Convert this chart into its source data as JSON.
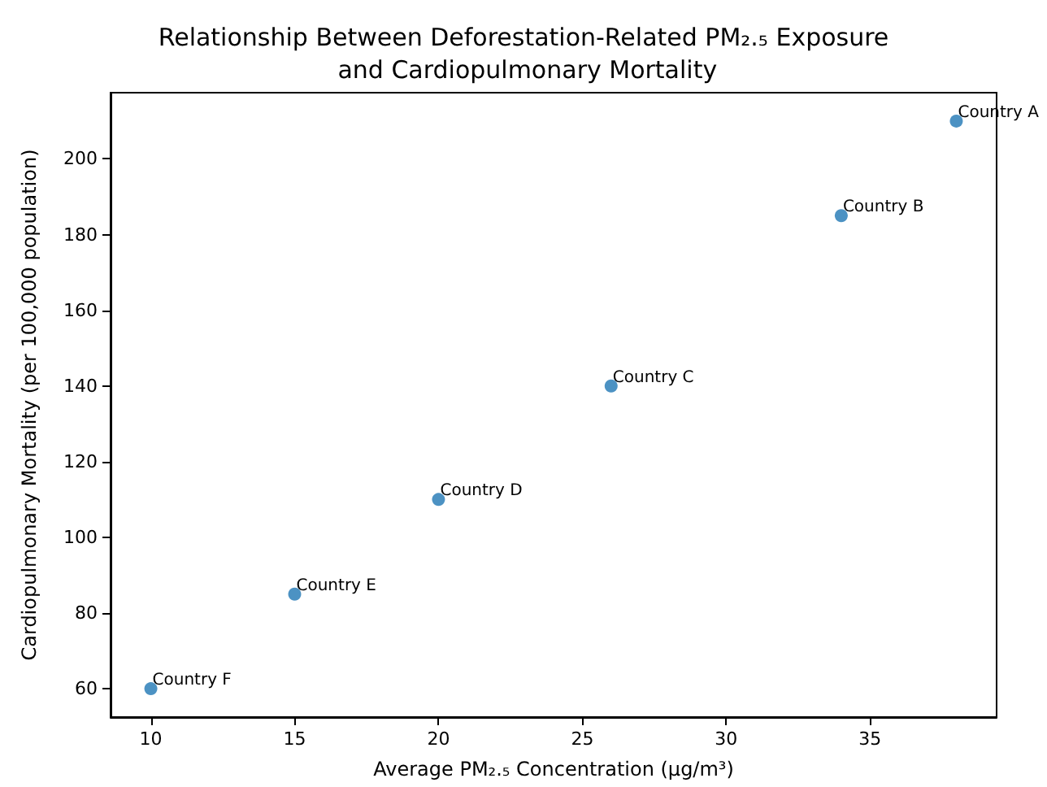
{
  "chart_data": {
    "type": "scatter",
    "title": "Relationship Between Deforestation-Related PM₂.₅ Exposure and Cardiopulmonary Mortality",
    "xlabel": "Average PM₂.₅ Concentration (µg/m³)",
    "ylabel": "Cardiopulmonary Mortality (per 100,000 population)",
    "x": [
      38,
      34,
      26,
      20,
      15,
      10
    ],
    "series": [
      {
        "color": "#1f77b4",
        "values": [
          210,
          185,
          140,
          110,
          85,
          60
        ]
      }
    ],
    "annotations": [
      {
        "text": "Country A",
        "x": 38,
        "y": 210
      },
      {
        "text": "Country B",
        "x": 34,
        "y": 185
      },
      {
        "text": "Country C",
        "x": 26,
        "y": 140
      },
      {
        "text": "Country D",
        "x": 20,
        "y": 110
      },
      {
        "text": "Country E",
        "x": 15,
        "y": 85
      },
      {
        "text": "Country F",
        "x": 10,
        "y": 60
      }
    ],
    "xlim": [
      8.6,
      39.4
    ],
    "xticks": [
      10,
      15,
      20,
      25,
      30,
      35
    ],
    "ylim": [
      52.5,
      217.5
    ],
    "yticks": [
      60,
      80,
      100,
      120,
      140,
      160,
      180,
      200
    ],
    "marker": "circle",
    "grid": false
  }
}
